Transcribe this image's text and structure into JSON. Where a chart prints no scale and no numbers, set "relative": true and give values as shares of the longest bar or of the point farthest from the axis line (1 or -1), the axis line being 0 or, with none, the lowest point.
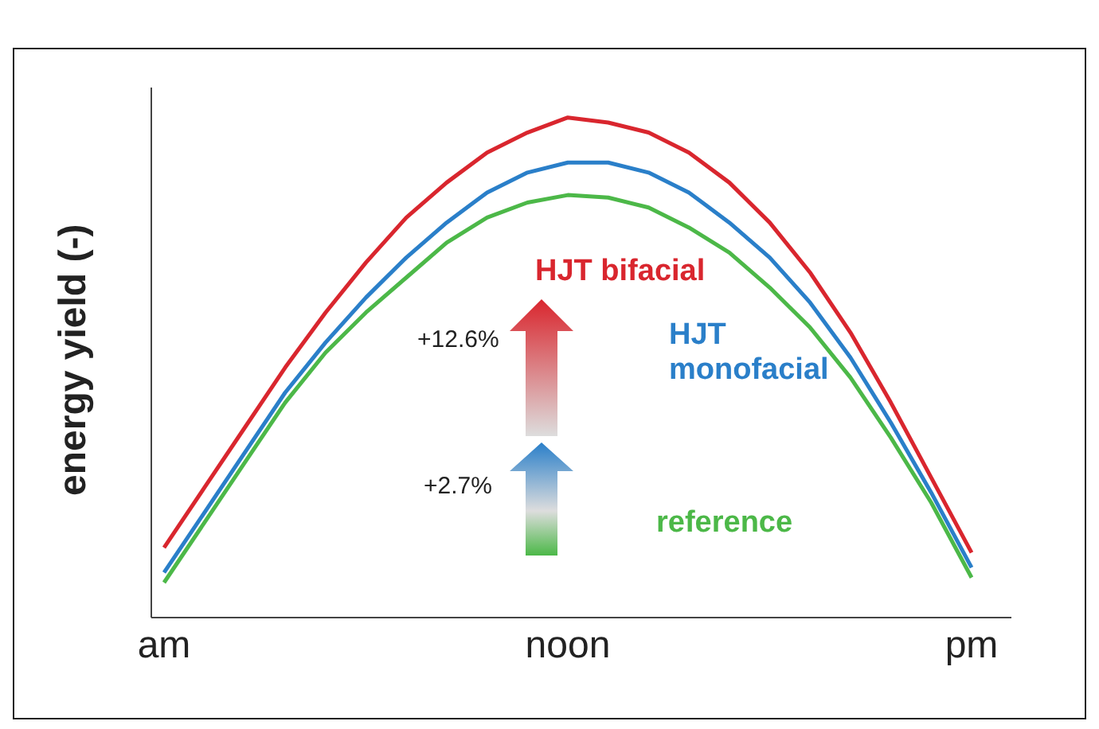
{
  "chart_data": {
    "type": "line",
    "relative": true,
    "ylabel": "energy yield (-)",
    "categories": [
      "am",
      null,
      null,
      null,
      null,
      null,
      null,
      null,
      null,
      null,
      "noon",
      null,
      null,
      null,
      null,
      null,
      null,
      null,
      null,
      null,
      "pm"
    ],
    "series": [
      {
        "name": "HJT bifacial",
        "color": "#d9262e",
        "values": [
          0.14,
          0.26,
          0.38,
          0.5,
          0.61,
          0.71,
          0.8,
          0.87,
          0.93,
          0.97,
          1.0,
          0.99,
          0.97,
          0.93,
          0.87,
          0.79,
          0.69,
          0.57,
          0.43,
          0.28,
          0.13
        ]
      },
      {
        "name": "HJT monofacial",
        "color": "#2a7fc9",
        "values": [
          0.09,
          0.21,
          0.33,
          0.45,
          0.55,
          0.64,
          0.72,
          0.79,
          0.85,
          0.89,
          0.91,
          0.91,
          0.89,
          0.85,
          0.79,
          0.72,
          0.63,
          0.52,
          0.39,
          0.25,
          0.1
        ]
      },
      {
        "name": "reference",
        "color": "#4cb848",
        "values": [
          0.07,
          0.19,
          0.31,
          0.43,
          0.53,
          0.61,
          0.68,
          0.75,
          0.8,
          0.83,
          0.845,
          0.84,
          0.82,
          0.78,
          0.73,
          0.66,
          0.58,
          0.48,
          0.36,
          0.23,
          0.08
        ]
      }
    ],
    "annotations": [
      "+12.6%",
      "+2.7%"
    ],
    "grid": false,
    "legend": false,
    "marker": "none",
    "line_style": "solid"
  }
}
